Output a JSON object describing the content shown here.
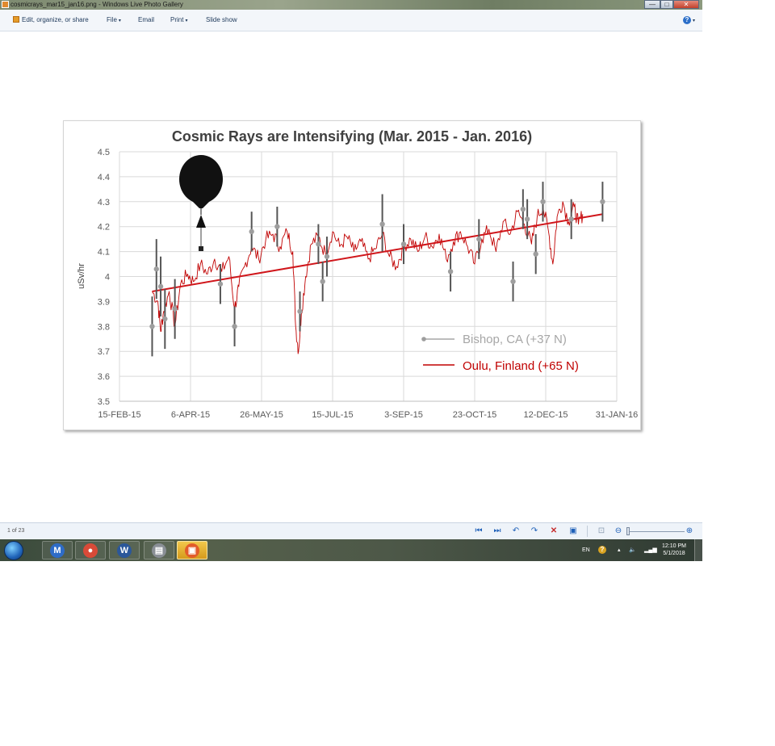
{
  "window": {
    "title": "cosmicrays_mar15_jan16.png - Windows Live Photo Gallery",
    "minimize_glyph": "—",
    "maximize_glyph": "□",
    "close_glyph": "✕"
  },
  "menu": {
    "items": [
      {
        "label": "Edit, organize, or share"
      },
      {
        "label": "File",
        "arrow": "▾"
      },
      {
        "label": "Email"
      },
      {
        "label": "Print",
        "arrow": "▾"
      },
      {
        "label": "Slide show"
      }
    ],
    "help_glyph": "?",
    "help_arrow": "▾"
  },
  "colors": {
    "oulu_line": "#c00000",
    "trend_line": "#d0161b",
    "bishop": "#9e9e9e",
    "bishop_error": "#555555",
    "legend_bishop_text": "#a6a6a6",
    "legend_oulu_text": "#c00000",
    "grid": "#d9d9d9"
  },
  "chart_data": {
    "type": "line",
    "title": "Cosmic Rays are Intensifying (Mar. 2015 - Jan. 2016)",
    "xlabel": "",
    "ylabel": "uSv/hr",
    "xlim": [
      "2015-02-15",
      "2016-01-31"
    ],
    "ylim": [
      3.5,
      4.5
    ],
    "x_ticks": [
      "15-FEB-15",
      "6-APR-15",
      "26-MAY-15",
      "15-JUL-15",
      "3-SEP-15",
      "23-OCT-15",
      "12-DEC-15",
      "31-JAN-16"
    ],
    "y_ticks": [
      "3.5",
      "3.6",
      "3.7",
      "3.8",
      "3.9",
      "4",
      "4.1",
      "4.2",
      "4.3",
      "4.4",
      "4.5"
    ],
    "grid": true,
    "legend_position": "bottom-right",
    "series": [
      {
        "name": "Bishop, CA (+37 N)",
        "type": "scatter-errorbar",
        "points": [
          {
            "x": "2015-03-10",
            "y": 3.8,
            "low": 3.68,
            "high": 3.92
          },
          {
            "x": "2015-03-13",
            "y": 4.03,
            "low": 3.91,
            "high": 4.15
          },
          {
            "x": "2015-03-16",
            "y": 3.96,
            "low": 3.84,
            "high": 4.08
          },
          {
            "x": "2015-03-19",
            "y": 3.83,
            "low": 3.71,
            "high": 3.95
          },
          {
            "x": "2015-03-26",
            "y": 3.87,
            "low": 3.75,
            "high": 3.99
          },
          {
            "x": "2015-04-27",
            "y": 3.97,
            "low": 3.89,
            "high": 4.05
          },
          {
            "x": "2015-05-07",
            "y": 3.8,
            "low": 3.72,
            "high": 3.88
          },
          {
            "x": "2015-05-19",
            "y": 4.18,
            "low": 4.1,
            "high": 4.26
          },
          {
            "x": "2015-06-06",
            "y": 4.2,
            "low": 4.12,
            "high": 4.28
          },
          {
            "x": "2015-06-22",
            "y": 3.86,
            "low": 3.78,
            "high": 3.94
          },
          {
            "x": "2015-07-05",
            "y": 4.13,
            "low": 4.05,
            "high": 4.21
          },
          {
            "x": "2015-07-08",
            "y": 3.98,
            "low": 3.9,
            "high": 4.06
          },
          {
            "x": "2015-07-11",
            "y": 4.08,
            "low": 4.0,
            "high": 4.16
          },
          {
            "x": "2015-08-19",
            "y": 4.21,
            "low": 4.1,
            "high": 4.33
          },
          {
            "x": "2015-09-03",
            "y": 4.13,
            "low": 4.05,
            "high": 4.21
          },
          {
            "x": "2015-10-06",
            "y": 4.02,
            "low": 3.94,
            "high": 4.1
          },
          {
            "x": "2015-10-26",
            "y": 4.15,
            "low": 4.07,
            "high": 4.23
          },
          {
            "x": "2015-11-19",
            "y": 3.98,
            "low": 3.9,
            "high": 4.06
          },
          {
            "x": "2015-11-26",
            "y": 4.27,
            "low": 4.19,
            "high": 4.35
          },
          {
            "x": "2015-11-29",
            "y": 4.23,
            "low": 4.15,
            "high": 4.31
          },
          {
            "x": "2015-12-05",
            "y": 4.09,
            "low": 4.01,
            "high": 4.17
          },
          {
            "x": "2015-12-10",
            "y": 4.3,
            "low": 4.22,
            "high": 4.38
          },
          {
            "x": "2015-12-30",
            "y": 4.23,
            "low": 4.15,
            "high": 4.31
          },
          {
            "x": "2016-01-21",
            "y": 4.3,
            "low": 4.22,
            "high": 4.38
          }
        ]
      },
      {
        "name": "Oulu, Finland (+65 N)",
        "type": "line",
        "points": [
          [
            "2015-03-10",
            3.94
          ],
          [
            "2015-03-14",
            3.9
          ],
          [
            "2015-03-16",
            3.78
          ],
          [
            "2015-03-18",
            3.86
          ],
          [
            "2015-03-22",
            3.94
          ],
          [
            "2015-03-26",
            3.8
          ],
          [
            "2015-03-30",
            3.97
          ],
          [
            "2015-04-04",
            4.01
          ],
          [
            "2015-04-08",
            3.98
          ],
          [
            "2015-04-13",
            4.05
          ],
          [
            "2015-04-18",
            4.01
          ],
          [
            "2015-04-23",
            4.07
          ],
          [
            "2015-04-28",
            4.02
          ],
          [
            "2015-05-03",
            4.08
          ],
          [
            "2015-05-07",
            3.87
          ],
          [
            "2015-05-10",
            3.96
          ],
          [
            "2015-05-14",
            4.04
          ],
          [
            "2015-05-19",
            4.12
          ],
          [
            "2015-05-24",
            4.07
          ],
          [
            "2015-05-29",
            4.15
          ],
          [
            "2015-06-03",
            4.17
          ],
          [
            "2015-06-08",
            4.12
          ],
          [
            "2015-06-13",
            4.18
          ],
          [
            "2015-06-17",
            4.1
          ],
          [
            "2015-06-19",
            3.8
          ],
          [
            "2015-06-21",
            3.7
          ],
          [
            "2015-06-23",
            3.85
          ],
          [
            "2015-06-26",
            4.0
          ],
          [
            "2015-06-30",
            4.13
          ],
          [
            "2015-07-05",
            4.16
          ],
          [
            "2015-07-10",
            4.09
          ],
          [
            "2015-07-15",
            4.18
          ],
          [
            "2015-07-20",
            4.12
          ],
          [
            "2015-07-25",
            4.16
          ],
          [
            "2015-07-30",
            4.1
          ],
          [
            "2015-08-04",
            4.14
          ],
          [
            "2015-08-09",
            4.07
          ],
          [
            "2015-08-14",
            4.11
          ],
          [
            "2015-08-19",
            4.17
          ],
          [
            "2015-08-24",
            4.08
          ],
          [
            "2015-08-29",
            4.04
          ],
          [
            "2015-09-03",
            4.12
          ],
          [
            "2015-09-08",
            4.15
          ],
          [
            "2015-09-13",
            4.1
          ],
          [
            "2015-09-18",
            4.16
          ],
          [
            "2015-09-23",
            4.12
          ],
          [
            "2015-09-28",
            4.17
          ],
          [
            "2015-10-03",
            4.07
          ],
          [
            "2015-10-08",
            4.14
          ],
          [
            "2015-10-13",
            4.18
          ],
          [
            "2015-10-18",
            4.12
          ],
          [
            "2015-10-23",
            4.05
          ],
          [
            "2015-10-28",
            4.15
          ],
          [
            "2015-11-02",
            4.19
          ],
          [
            "2015-11-07",
            4.1
          ],
          [
            "2015-11-12",
            4.22
          ],
          [
            "2015-11-17",
            4.17
          ],
          [
            "2015-11-22",
            4.26
          ],
          [
            "2015-11-27",
            4.21
          ],
          [
            "2015-12-02",
            4.13
          ],
          [
            "2015-12-06",
            4.24
          ],
          [
            "2015-12-10",
            4.28
          ],
          [
            "2015-12-14",
            4.18
          ],
          [
            "2015-12-17",
            4.05
          ],
          [
            "2015-12-20",
            4.24
          ],
          [
            "2015-12-24",
            4.3
          ],
          [
            "2015-12-28",
            4.22
          ],
          [
            "2016-01-01",
            4.28
          ],
          [
            "2016-01-04",
            4.21
          ],
          [
            "2016-01-07",
            4.25
          ]
        ]
      }
    ],
    "trend": {
      "from": [
        "2015-03-10",
        3.94
      ],
      "to": [
        "2016-01-21",
        4.25
      ]
    }
  },
  "status": {
    "counter": "1 of 23",
    "zoom_out_glyph": "⊖",
    "zoom_in_glyph": "⊕"
  },
  "taskbar": {
    "items": [
      {
        "name": "outlook",
        "glyph": "M",
        "color": "#2e6cc7"
      },
      {
        "name": "chrome",
        "glyph": "●",
        "color": "#d94a38"
      },
      {
        "name": "word",
        "glyph": "W",
        "color": "#2b579a"
      },
      {
        "name": "scanner",
        "glyph": "▤",
        "color": "#8a8f96"
      },
      {
        "name": "photo-gallery",
        "glyph": "▣",
        "color": "#e25c2a"
      }
    ],
    "language": "EN",
    "time": "12:10 PM",
    "date": "5/1/2018"
  }
}
